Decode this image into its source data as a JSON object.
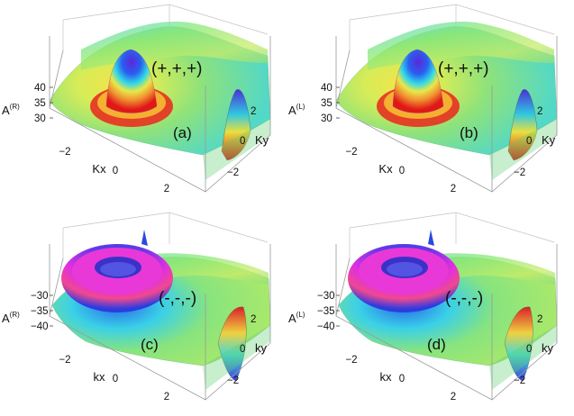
{
  "panels": [
    {
      "id": "a",
      "sign_label": "(+,+,+)",
      "panel_label": "(a)",
      "z_axis_base": "A",
      "z_axis_sup": "(R)",
      "x_axis_label": "Kx",
      "y_axis_label": "Ky",
      "z_ticks": [
        "40",
        "35",
        "30"
      ],
      "x_ticks": [
        "−2",
        "0",
        "2"
      ],
      "y_ticks": [
        "2",
        "0",
        "−2"
      ],
      "surface": "peak",
      "colors": {
        "base": "#7fe07a",
        "peak_top": "#5a28d8",
        "ring": "#e01818"
      }
    },
    {
      "id": "b",
      "sign_label": "(+,+,+)",
      "panel_label": "(b)",
      "z_axis_base": "A",
      "z_axis_sup": "(L)",
      "x_axis_label": "Kx",
      "y_axis_label": "Ky",
      "z_ticks": [
        "40",
        "35",
        "30"
      ],
      "x_ticks": [
        "−2",
        "0",
        "2"
      ],
      "y_ticks": [
        "2",
        "0",
        "−2"
      ],
      "surface": "peak",
      "colors": {
        "base": "#7fe07a",
        "peak_top": "#5a28d8",
        "ring": "#e01818"
      }
    },
    {
      "id": "c",
      "sign_label": "(-,-,-)",
      "panel_label": "(c)",
      "z_axis_base": "A",
      "z_axis_sup": "(R)",
      "x_axis_label": "kx",
      "y_axis_label": "ky",
      "z_ticks": [
        "−30",
        "−35",
        "−40"
      ],
      "x_ticks": [
        "−2",
        "0",
        "2"
      ],
      "y_ticks": [
        "2",
        "0",
        "−2"
      ],
      "surface": "torus",
      "colors": {
        "base": "#7fe07a",
        "peak_top": "#e030e0",
        "ring": "#2c3ce0"
      }
    },
    {
      "id": "d",
      "sign_label": "(-,-,-)",
      "panel_label": "(d)",
      "z_axis_base": "A",
      "z_axis_sup": "(L)",
      "x_axis_label": "kx",
      "y_axis_label": "ky",
      "z_ticks": [
        "−30",
        "−35",
        "−40"
      ],
      "x_ticks": [
        "−2",
        "0",
        "2"
      ],
      "y_ticks": [
        "2",
        "0",
        "−2"
      ],
      "surface": "torus",
      "colors": {
        "base": "#7fe07a",
        "peak_top": "#e030e0",
        "ring": "#2c3ce0"
      }
    }
  ]
}
